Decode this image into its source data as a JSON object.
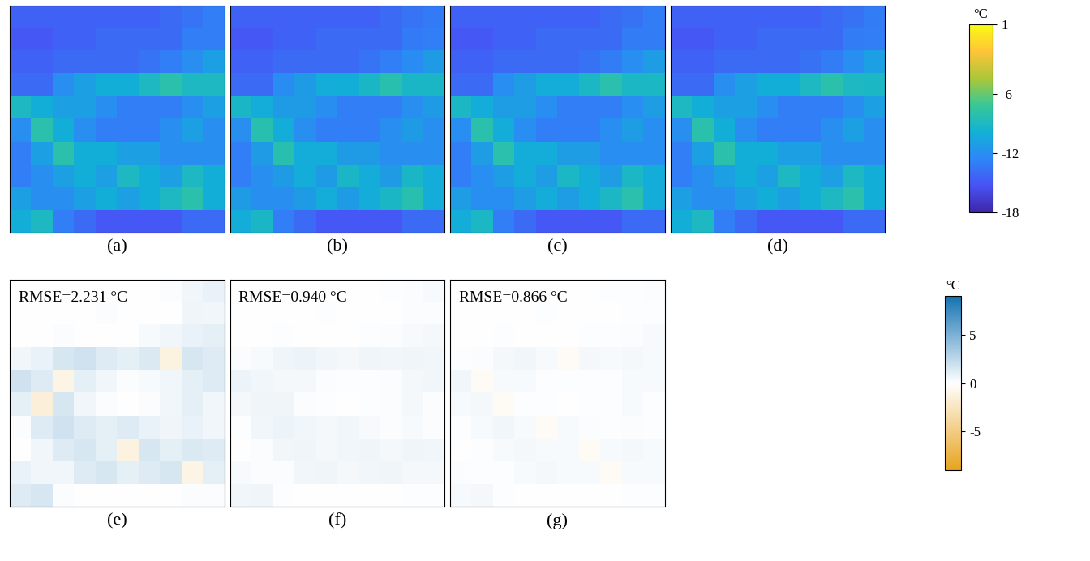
{
  "chart_data": [
    {
      "type": "heatmap",
      "label": "(a)",
      "tick_labels": false,
      "zlim": [
        -18,
        1
      ],
      "cells": [
        [
          -14.5,
          -14.5,
          -14.5,
          -14.5,
          -14.5,
          -14.5,
          -14.5,
          -14.0,
          -13.5,
          -13.0
        ],
        [
          -15.0,
          -15.0,
          -14.5,
          -14.5,
          -14.0,
          -14.0,
          -14.0,
          -14.0,
          -13.0,
          -13.0
        ],
        [
          -14.5,
          -14.5,
          -14.0,
          -14.0,
          -14.0,
          -14.0,
          -13.5,
          -13.0,
          -12.0,
          -11.0
        ],
        [
          -14.0,
          -14.0,
          -12.0,
          -11.0,
          -10.0,
          -10.0,
          -9.0,
          -8.0,
          -9.0,
          -9.0
        ],
        [
          -9.0,
          -10.0,
          -11.0,
          -11.0,
          -12.0,
          -13.0,
          -13.0,
          -13.0,
          -12.0,
          -11.0
        ],
        [
          -12.0,
          -8.0,
          -10.0,
          -12.0,
          -13.0,
          -13.0,
          -13.0,
          -12.0,
          -11.0,
          -12.0
        ],
        [
          -13.0,
          -11.0,
          -8.0,
          -10.0,
          -10.0,
          -11.0,
          -11.0,
          -12.0,
          -12.0,
          -12.0
        ],
        [
          -13.0,
          -12.0,
          -11.0,
          -10.0,
          -11.0,
          -9.0,
          -10.0,
          -11.0,
          -9.0,
          -10.0
        ],
        [
          -11.0,
          -12.0,
          -12.0,
          -11.0,
          -10.0,
          -11.0,
          -10.0,
          -9.0,
          -8.0,
          -10.0
        ],
        [
          -10.0,
          -9.0,
          -13.0,
          -14.0,
          -15.0,
          -15.0,
          -15.0,
          -15.0,
          -14.0,
          -14.0
        ]
      ]
    },
    {
      "type": "heatmap",
      "label": "(b)",
      "tick_labels": false,
      "zlim": [
        -18,
        1
      ],
      "cells": [
        [
          -14.5,
          -14.5,
          -14.5,
          -14.5,
          -14.5,
          -14.5,
          -14.5,
          -14.0,
          -13.5,
          -13.2
        ],
        [
          -15.0,
          -15.0,
          -14.5,
          -14.5,
          -14.0,
          -14.0,
          -14.0,
          -14.0,
          -13.2,
          -13.0
        ],
        [
          -14.5,
          -14.5,
          -14.0,
          -14.0,
          -14.0,
          -14.0,
          -13.5,
          -13.0,
          -12.2,
          -11.2
        ],
        [
          -14.0,
          -14.0,
          -12.2,
          -11.2,
          -10.2,
          -10.0,
          -9.2,
          -8.2,
          -9.2,
          -9.2
        ],
        [
          -9.2,
          -10.2,
          -11.2,
          -11.2,
          -12.0,
          -13.0,
          -13.0,
          -13.0,
          -12.0,
          -11.2
        ],
        [
          -12.0,
          -8.2,
          -10.2,
          -12.0,
          -13.0,
          -13.0,
          -13.0,
          -12.0,
          -11.2,
          -12.0
        ],
        [
          -13.0,
          -11.2,
          -8.2,
          -10.2,
          -10.2,
          -11.2,
          -11.2,
          -12.0,
          -12.0,
          -12.0
        ],
        [
          -13.0,
          -12.0,
          -11.2,
          -10.2,
          -11.2,
          -9.2,
          -10.2,
          -11.2,
          -9.2,
          -10.2
        ],
        [
          -11.2,
          -12.0,
          -12.0,
          -11.2,
          -10.2,
          -11.2,
          -10.2,
          -9.2,
          -8.2,
          -10.2
        ],
        [
          -10.2,
          -9.2,
          -13.0,
          -14.0,
          -15.0,
          -15.0,
          -15.0,
          -15.0,
          -14.0,
          -14.0
        ]
      ]
    },
    {
      "type": "heatmap",
      "label": "(c)",
      "tick_labels": false,
      "zlim": [
        -18,
        1
      ],
      "cells": [
        [
          -14.5,
          -14.5,
          -14.5,
          -14.5,
          -14.5,
          -14.5,
          -14.5,
          -14.0,
          -13.6,
          -13.1
        ],
        [
          -15.0,
          -15.0,
          -14.5,
          -14.5,
          -14.0,
          -14.0,
          -14.0,
          -14.0,
          -13.1,
          -13.1
        ],
        [
          -14.5,
          -14.5,
          -14.0,
          -14.0,
          -14.0,
          -14.0,
          -13.6,
          -13.1,
          -12.1,
          -11.1
        ],
        [
          -14.0,
          -14.0,
          -12.1,
          -11.1,
          -10.1,
          -10.1,
          -9.1,
          -8.1,
          -9.1,
          -9.1
        ],
        [
          -9.1,
          -10.1,
          -11.1,
          -11.1,
          -12.1,
          -13.0,
          -13.0,
          -13.0,
          -12.1,
          -11.1
        ],
        [
          -12.1,
          -8.1,
          -10.1,
          -12.1,
          -13.0,
          -13.0,
          -13.0,
          -12.1,
          -11.1,
          -12.1
        ],
        [
          -13.0,
          -11.1,
          -8.1,
          -10.1,
          -10.1,
          -11.1,
          -11.1,
          -12.1,
          -12.1,
          -12.1
        ],
        [
          -13.0,
          -12.1,
          -11.1,
          -10.1,
          -11.1,
          -9.1,
          -10.1,
          -11.1,
          -9.1,
          -10.1
        ],
        [
          -11.1,
          -12.1,
          -12.1,
          -11.1,
          -10.1,
          -11.1,
          -10.1,
          -9.1,
          -8.1,
          -10.1
        ],
        [
          -10.1,
          -9.1,
          -13.0,
          -14.0,
          -15.0,
          -15.0,
          -15.0,
          -15.0,
          -14.0,
          -14.0
        ]
      ]
    },
    {
      "type": "heatmap",
      "label": "(d)",
      "tick_labels": false,
      "zlim": [
        -18,
        1
      ],
      "colorbar": {
        "title": "°C",
        "ticks": [
          1,
          -6,
          -12,
          -18
        ]
      },
      "cells": [
        [
          -14.5,
          -14.5,
          -14.5,
          -14.5,
          -14.5,
          -14.5,
          -14.5,
          -14.0,
          -13.6,
          -13.1
        ],
        [
          -15.0,
          -15.0,
          -14.5,
          -14.5,
          -14.0,
          -14.0,
          -14.0,
          -14.0,
          -13.1,
          -13.0
        ],
        [
          -14.5,
          -14.5,
          -14.0,
          -14.0,
          -14.0,
          -14.0,
          -13.6,
          -13.1,
          -12.1,
          -11.0
        ],
        [
          -14.0,
          -14.0,
          -12.0,
          -11.0,
          -10.0,
          -10.0,
          -9.0,
          -8.0,
          -9.0,
          -9.1
        ],
        [
          -9.0,
          -10.0,
          -11.0,
          -11.0,
          -12.0,
          -13.0,
          -13.0,
          -13.0,
          -12.0,
          -11.0
        ],
        [
          -12.0,
          -8.0,
          -10.0,
          -12.0,
          -13.0,
          -13.0,
          -13.0,
          -12.0,
          -11.0,
          -12.0
        ],
        [
          -13.0,
          -11.0,
          -8.0,
          -10.0,
          -10.0,
          -11.0,
          -11.0,
          -12.0,
          -12.0,
          -12.0
        ],
        [
          -13.0,
          -12.0,
          -11.0,
          -10.0,
          -11.0,
          -9.0,
          -10.0,
          -11.0,
          -9.0,
          -10.0
        ],
        [
          -11.0,
          -12.0,
          -12.0,
          -11.0,
          -10.0,
          -11.0,
          -10.0,
          -9.0,
          -8.0,
          -10.0
        ],
        [
          -10.0,
          -9.0,
          -13.0,
          -14.0,
          -15.0,
          -15.0,
          -15.0,
          -15.0,
          -14.0,
          -14.0
        ]
      ]
    },
    {
      "type": "heatmap",
      "label": "(e)",
      "tick_labels": false,
      "zlim": [
        -9,
        9
      ],
      "annotation": "RMSE=2.231 °C",
      "cells": [
        [
          0.0,
          0.0,
          0.0,
          0.0,
          0.0,
          0.0,
          0.0,
          0.2,
          0.5,
          0.8
        ],
        [
          0.0,
          0.0,
          0.0,
          0.0,
          0.2,
          0.0,
          0.0,
          0.0,
          0.6,
          0.5
        ],
        [
          0.0,
          0.0,
          0.2,
          0.0,
          0.0,
          0.0,
          0.3,
          0.5,
          0.8,
          1.0
        ],
        [
          0.5,
          0.8,
          1.5,
          1.8,
          1.2,
          1.0,
          1.4,
          -1.2,
          1.5,
          1.2
        ],
        [
          1.8,
          1.2,
          -1.0,
          1.0,
          0.5,
          0.2,
          0.3,
          0.5,
          1.0,
          1.2
        ],
        [
          1.0,
          -1.5,
          1.5,
          0.5,
          0.2,
          0.0,
          0.2,
          0.5,
          1.0,
          0.5
        ],
        [
          0.2,
          1.2,
          1.8,
          1.2,
          1.0,
          1.2,
          0.8,
          0.6,
          0.8,
          0.5
        ],
        [
          0.0,
          0.5,
          1.2,
          1.5,
          1.0,
          -1.2,
          1.5,
          1.0,
          1.4,
          1.2
        ],
        [
          0.8,
          0.5,
          0.5,
          1.2,
          1.5,
          1.0,
          1.2,
          1.5,
          -1.0,
          1.0
        ],
        [
          1.2,
          1.5,
          0.2,
          0.0,
          0.0,
          0.0,
          0.0,
          0.0,
          0.2,
          0.2
        ]
      ]
    },
    {
      "type": "heatmap",
      "label": "(f)",
      "tick_labels": false,
      "zlim": [
        -9,
        9
      ],
      "annotation": "RMSE=0.940 °C",
      "cells": [
        [
          0.0,
          0.0,
          0.0,
          0.0,
          0.0,
          0.0,
          0.0,
          0.1,
          0.2,
          0.3
        ],
        [
          0.0,
          0.0,
          0.0,
          0.0,
          0.1,
          0.0,
          0.0,
          0.0,
          0.2,
          0.2
        ],
        [
          0.0,
          0.0,
          0.1,
          0.0,
          0.0,
          0.0,
          0.1,
          0.2,
          0.3,
          0.4
        ],
        [
          0.2,
          0.3,
          0.6,
          0.7,
          0.5,
          0.4,
          0.6,
          0.5,
          0.6,
          0.5
        ],
        [
          0.7,
          0.5,
          0.4,
          0.4,
          0.2,
          0.1,
          0.1,
          0.2,
          0.4,
          0.5
        ],
        [
          0.4,
          0.6,
          0.6,
          0.2,
          0.1,
          0.0,
          0.1,
          0.2,
          0.4,
          0.2
        ],
        [
          0.1,
          0.5,
          0.7,
          0.5,
          0.4,
          0.5,
          0.3,
          0.2,
          0.3,
          0.2
        ],
        [
          0.0,
          0.2,
          0.5,
          0.6,
          0.4,
          0.5,
          0.6,
          0.4,
          0.6,
          0.5
        ],
        [
          0.3,
          0.2,
          0.2,
          0.5,
          0.6,
          0.4,
          0.5,
          0.6,
          0.4,
          0.4
        ],
        [
          0.5,
          0.6,
          0.1,
          0.0,
          0.0,
          0.0,
          0.0,
          0.0,
          0.1,
          0.1
        ]
      ]
    },
    {
      "type": "heatmap",
      "label": "(g)",
      "tick_labels": false,
      "zlim": [
        -9,
        9
      ],
      "annotation": "RMSE=0.866 °C",
      "colorbar": {
        "title": "°C",
        "ticks": [
          5,
          0,
          -5
        ]
      },
      "cells": [
        [
          0.0,
          0.0,
          0.0,
          0.0,
          0.0,
          0.0,
          0.0,
          0.1,
          0.1,
          0.2
        ],
        [
          0.0,
          0.0,
          0.0,
          0.0,
          0.1,
          0.0,
          0.0,
          0.0,
          0.1,
          0.1
        ],
        [
          0.0,
          0.0,
          0.1,
          0.0,
          0.0,
          0.0,
          0.1,
          0.1,
          0.2,
          0.3
        ],
        [
          0.1,
          0.2,
          0.4,
          0.5,
          0.3,
          -0.3,
          0.4,
          0.3,
          0.4,
          0.3
        ],
        [
          0.5,
          -0.3,
          0.3,
          0.3,
          0.1,
          0.1,
          0.1,
          0.1,
          0.3,
          0.3
        ],
        [
          0.3,
          0.4,
          -0.4,
          0.1,
          0.1,
          0.0,
          0.1,
          0.1,
          0.3,
          0.1
        ],
        [
          0.1,
          0.3,
          0.5,
          0.3,
          -0.3,
          0.3,
          0.2,
          0.1,
          0.2,
          0.1
        ],
        [
          0.0,
          0.1,
          0.3,
          0.4,
          0.3,
          0.3,
          -0.4,
          0.3,
          0.4,
          0.3
        ],
        [
          0.2,
          0.1,
          0.1,
          0.3,
          0.4,
          0.3,
          0.3,
          -0.4,
          0.3,
          0.3
        ],
        [
          0.3,
          0.4,
          0.1,
          0.0,
          0.0,
          0.0,
          0.0,
          0.0,
          0.1,
          0.1
        ]
      ]
    }
  ]
}
